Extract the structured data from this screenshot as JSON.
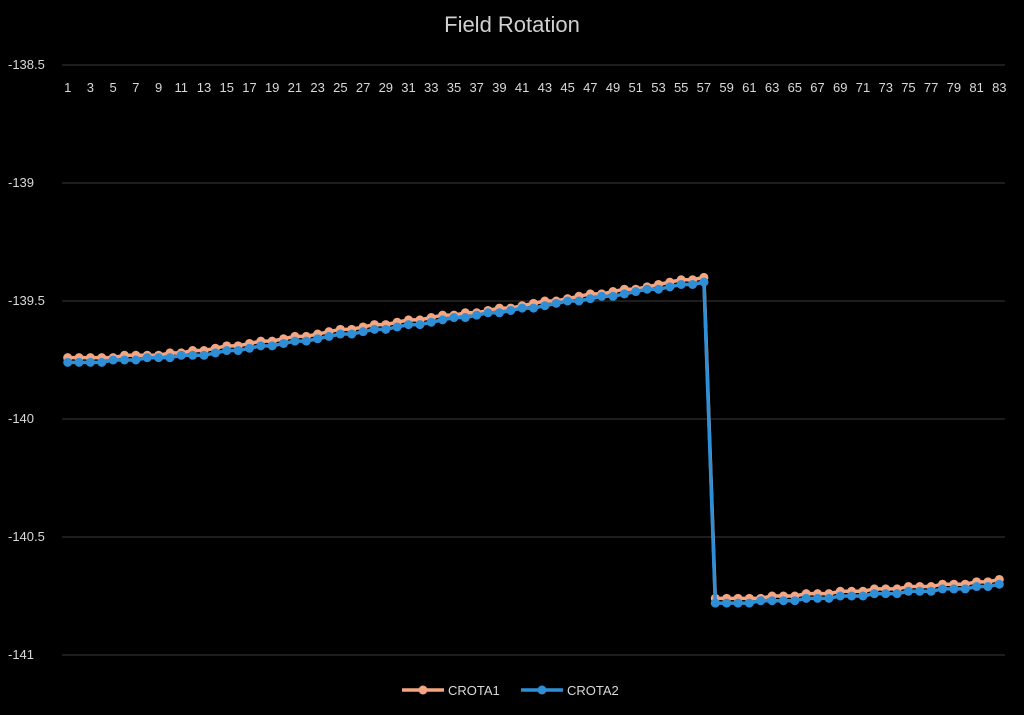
{
  "chart_data": {
    "type": "line",
    "title": "Field Rotation",
    "xlabel": "",
    "ylabel": "",
    "ylim": [
      -141,
      -138.5
    ],
    "yticks": [
      -138.5,
      -139,
      -139.5,
      -140,
      -140.5,
      -141
    ],
    "ytick_labels": [
      "-138.5",
      "-139",
      "-139.5",
      "-140",
      "-140.5",
      "-141"
    ],
    "x_axis_position": "top",
    "grid": true,
    "legend_position": "bottom",
    "categories": [
      1,
      2,
      3,
      4,
      5,
      6,
      7,
      8,
      9,
      10,
      11,
      12,
      13,
      14,
      15,
      16,
      17,
      18,
      19,
      20,
      21,
      22,
      23,
      24,
      25,
      26,
      27,
      28,
      29,
      30,
      31,
      32,
      33,
      34,
      35,
      36,
      37,
      38,
      39,
      40,
      41,
      42,
      43,
      44,
      45,
      46,
      47,
      48,
      49,
      50,
      51,
      52,
      53,
      54,
      55,
      56,
      57,
      58,
      59,
      60,
      61,
      62,
      63,
      64,
      65,
      66,
      67,
      68,
      69,
      70,
      71,
      72,
      73,
      74,
      75,
      76,
      77,
      78,
      79,
      80,
      81,
      82,
      83
    ],
    "xtick_labels": [
      "1",
      "3",
      "5",
      "7",
      "9",
      "11",
      "13",
      "15",
      "17",
      "19",
      "21",
      "23",
      "25",
      "27",
      "29",
      "31",
      "33",
      "35",
      "37",
      "39",
      "41",
      "43",
      "45",
      "47",
      "49",
      "51",
      "53",
      "55",
      "57",
      "59",
      "61",
      "63",
      "65",
      "67",
      "69",
      "71",
      "73",
      "75",
      "77",
      "79",
      "81",
      "83"
    ],
    "series": [
      {
        "name": "CROTA1",
        "color": "#f4a582",
        "values": [
          -139.74,
          -139.74,
          -139.74,
          -139.74,
          -139.74,
          -139.73,
          -139.73,
          -139.73,
          -139.73,
          -139.72,
          -139.72,
          -139.71,
          -139.71,
          -139.7,
          -139.69,
          -139.69,
          -139.68,
          -139.67,
          -139.67,
          -139.66,
          -139.65,
          -139.65,
          -139.64,
          -139.63,
          -139.62,
          -139.62,
          -139.61,
          -139.6,
          -139.6,
          -139.59,
          -139.58,
          -139.58,
          -139.57,
          -139.56,
          -139.56,
          -139.55,
          -139.55,
          -139.54,
          -139.53,
          -139.53,
          -139.52,
          -139.51,
          -139.5,
          -139.5,
          -139.49,
          -139.48,
          -139.47,
          -139.47,
          -139.46,
          -139.45,
          -139.45,
          -139.44,
          -139.43,
          -139.42,
          -139.41,
          -139.41,
          -139.4,
          -140.76,
          -140.76,
          -140.76,
          -140.76,
          -140.76,
          -140.75,
          -140.75,
          -140.75,
          -140.74,
          -140.74,
          -140.74,
          -140.73,
          -140.73,
          -140.73,
          -140.72,
          -140.72,
          -140.72,
          -140.71,
          -140.71,
          -140.71,
          -140.7,
          -140.7,
          -140.7,
          -140.69,
          -140.69,
          -140.68
        ]
      },
      {
        "name": "CROTA2",
        "color": "#2e8fd6",
        "values": [
          -139.76,
          -139.76,
          -139.76,
          -139.76,
          -139.75,
          -139.75,
          -139.75,
          -139.74,
          -139.74,
          -139.74,
          -139.73,
          -139.73,
          -139.73,
          -139.72,
          -139.71,
          -139.71,
          -139.7,
          -139.69,
          -139.69,
          -139.68,
          -139.67,
          -139.67,
          -139.66,
          -139.65,
          -139.64,
          -139.64,
          -139.63,
          -139.62,
          -139.62,
          -139.61,
          -139.6,
          -139.6,
          -139.59,
          -139.58,
          -139.57,
          -139.57,
          -139.56,
          -139.55,
          -139.55,
          -139.54,
          -139.53,
          -139.53,
          -139.52,
          -139.51,
          -139.5,
          -139.5,
          -139.49,
          -139.48,
          -139.48,
          -139.47,
          -139.46,
          -139.45,
          -139.45,
          -139.44,
          -139.43,
          -139.43,
          -139.42,
          -140.78,
          -140.78,
          -140.78,
          -140.78,
          -140.77,
          -140.77,
          -140.77,
          -140.77,
          -140.76,
          -140.76,
          -140.76,
          -140.75,
          -140.75,
          -140.75,
          -140.74,
          -140.74,
          -140.74,
          -140.73,
          -140.73,
          -140.73,
          -140.72,
          -140.72,
          -140.72,
          -140.71,
          -140.71,
          -140.7
        ]
      }
    ]
  }
}
